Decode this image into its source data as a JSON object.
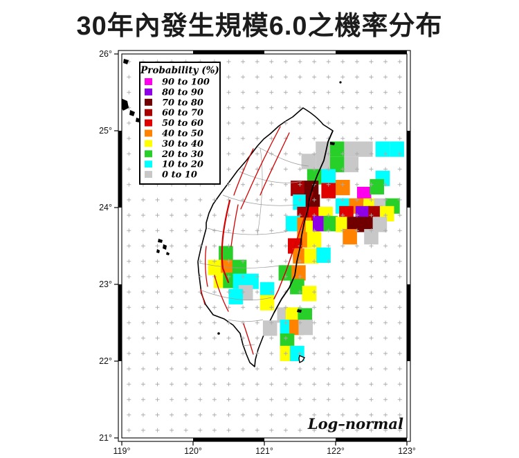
{
  "title": "30年內發生規模6.0之機率分布",
  "map": {
    "model_label": "Log–normal",
    "legend": {
      "title": "Probability (%)",
      "items": [
        {
          "key": "p90_100",
          "label": "90 to 100",
          "color": "#FF00EE"
        },
        {
          "key": "p80_90",
          "label": "80 to  90",
          "color": "#8E00E6"
        },
        {
          "key": "p70_80",
          "label": "70 to  80",
          "color": "#700000"
        },
        {
          "key": "p60_70",
          "label": "60 to  70",
          "color": "#A80000"
        },
        {
          "key": "p50_60",
          "label": "50 to  60",
          "color": "#E10000"
        },
        {
          "key": "p40_50",
          "label": "40 to  50",
          "color": "#FF8200"
        },
        {
          "key": "p30_40",
          "label": "30 to  40",
          "color": "#FFFF00"
        },
        {
          "key": "p20_30",
          "label": "20 to  30",
          "color": "#28CF28"
        },
        {
          "key": "p10_20",
          "label": "10 to  20",
          "color": "#00FFFF"
        },
        {
          "key": "p0_10",
          "label": "0 to  10",
          "color": "#C8C8C8"
        }
      ]
    },
    "axes": {
      "lon_ticks": [
        {
          "value": 119,
          "label": "119°"
        },
        {
          "value": 120,
          "label": "120°"
        },
        {
          "value": 121,
          "label": "121°"
        },
        {
          "value": 122,
          "label": "122°"
        },
        {
          "value": 123,
          "label": "123°"
        }
      ],
      "lat_ticks": [
        {
          "value": 26,
          "label": "26°"
        },
        {
          "value": 25,
          "label": "25°"
        },
        {
          "value": 24,
          "label": "24°"
        },
        {
          "value": 23,
          "label": "23°"
        },
        {
          "value": 22,
          "label": "22°"
        },
        {
          "value": 21,
          "label": "21°"
        }
      ]
    }
  },
  "chart_data": {
    "type": "heatmap",
    "title": "30年內發生規模6.0之機率分布",
    "subtitle_note": "Probability (%) of M6.0 earthquake in 30 years",
    "distribution_label": "Log–normal",
    "legend_title": "Probability (%)",
    "lon_range": [
      119,
      123
    ],
    "lat_range": [
      21,
      26
    ],
    "cell_size_deg": 0.2,
    "buckets": [
      "0 to 10",
      "10 to 20",
      "20 to 30",
      "30 to 40",
      "40 to 50",
      "50 to 60",
      "60 to 70",
      "70 to 80",
      "80 to 90",
      "90 to 100"
    ],
    "cells": [
      [
        121.82,
        24.76,
        "p0_10"
      ],
      [
        122.02,
        24.76,
        "p20_30"
      ],
      [
        122.22,
        24.76,
        "p0_10"
      ],
      [
        122.42,
        24.76,
        "p0_10"
      ],
      [
        122.66,
        24.76,
        "p10_20"
      ],
      [
        122.86,
        24.76,
        "p10_20"
      ],
      [
        121.62,
        24.6,
        "p0_10"
      ],
      [
        121.82,
        24.58,
        "p0_10"
      ],
      [
        122.02,
        24.56,
        "p20_30"
      ],
      [
        122.22,
        24.56,
        "p0_10"
      ],
      [
        122.66,
        24.38,
        "p10_20"
      ],
      [
        121.7,
        24.4,
        "p20_30"
      ],
      [
        121.9,
        24.4,
        "p10_20"
      ],
      [
        121.47,
        24.25,
        "p60_70"
      ],
      [
        121.66,
        24.25,
        "p70_80"
      ],
      [
        121.9,
        24.22,
        "p50_60"
      ],
      [
        122.1,
        24.26,
        "p40_50"
      ],
      [
        122.4,
        24.17,
        "p90_100"
      ],
      [
        122.58,
        24.27,
        "p20_30"
      ],
      [
        121.5,
        24.07,
        "p10_20"
      ],
      [
        121.68,
        24.07,
        "p70_80"
      ],
      [
        122.1,
        24.02,
        "p10_20"
      ],
      [
        122.29,
        24.02,
        "p40_50"
      ],
      [
        122.49,
        24.02,
        "p30_40"
      ],
      [
        122.64,
        24.02,
        "p0_10"
      ],
      [
        122.8,
        24.02,
        "p20_30"
      ],
      [
        121.56,
        23.91,
        "p60_70"
      ],
      [
        121.72,
        23.91,
        "p50_60"
      ],
      [
        121.86,
        23.91,
        "p30_40"
      ],
      [
        122.15,
        23.92,
        "p50_60"
      ],
      [
        122.38,
        23.92,
        "p80_90"
      ],
      [
        122.56,
        23.92,
        "p60_70"
      ],
      [
        122.72,
        23.92,
        "p30_40"
      ],
      [
        121.4,
        23.79,
        "p10_20"
      ],
      [
        121.56,
        23.77,
        "p40_50"
      ],
      [
        121.68,
        23.73,
        "p30_40"
      ],
      [
        121.78,
        23.79,
        "p80_90"
      ],
      [
        121.93,
        23.79,
        "p20_30"
      ],
      [
        122.1,
        23.78,
        "p30_40"
      ],
      [
        122.26,
        23.78,
        "p70_80"
      ],
      [
        122.44,
        23.78,
        "p70_80"
      ],
      [
        122.62,
        23.78,
        "p0_10"
      ],
      [
        121.56,
        23.58,
        "p40_50"
      ],
      [
        121.7,
        23.58,
        "p30_40"
      ],
      [
        122.2,
        23.62,
        "p40_50"
      ],
      [
        122.5,
        23.62,
        "p0_10"
      ],
      [
        121.43,
        23.5,
        "p50_60"
      ],
      [
        121.5,
        23.37,
        "p40_50"
      ],
      [
        121.66,
        23.37,
        "p30_40"
      ],
      [
        121.83,
        23.38,
        "p10_20"
      ],
      [
        120.46,
        23.4,
        "p20_30"
      ],
      [
        120.31,
        23.22,
        "p30_40"
      ],
      [
        120.49,
        23.22,
        "p40_50"
      ],
      [
        120.65,
        23.22,
        "p20_30"
      ],
      [
        120.39,
        23.05,
        "p30_40"
      ],
      [
        120.52,
        23.05,
        "p20_30"
      ],
      [
        120.66,
        23.04,
        "p10_20"
      ],
      [
        120.82,
        23.04,
        "p10_20"
      ],
      [
        120.74,
        22.89,
        "p0_10"
      ],
      [
        120.6,
        22.84,
        "p10_20"
      ],
      [
        121.3,
        23.15,
        "p20_30"
      ],
      [
        121.48,
        23.15,
        "p40_50"
      ],
      [
        121.46,
        22.97,
        "p20_30"
      ],
      [
        121.63,
        22.88,
        "p30_40"
      ],
      [
        121.04,
        22.93,
        "p10_20"
      ],
      [
        121.04,
        22.76,
        "p30_40"
      ],
      [
        121.08,
        22.43,
        "p0_10"
      ],
      [
        121.28,
        22.6,
        "p0_10"
      ],
      [
        121.4,
        22.6,
        "p30_40"
      ],
      [
        121.57,
        22.59,
        "p20_30"
      ],
      [
        121.32,
        22.44,
        "p10_20"
      ],
      [
        121.45,
        22.44,
        "p40_50"
      ],
      [
        121.58,
        22.44,
        "p0_10"
      ],
      [
        121.32,
        22.26,
        "p20_30"
      ],
      [
        121.32,
        22.1,
        "p30_40"
      ],
      [
        121.46,
        22.1,
        "p10_20"
      ]
    ]
  }
}
